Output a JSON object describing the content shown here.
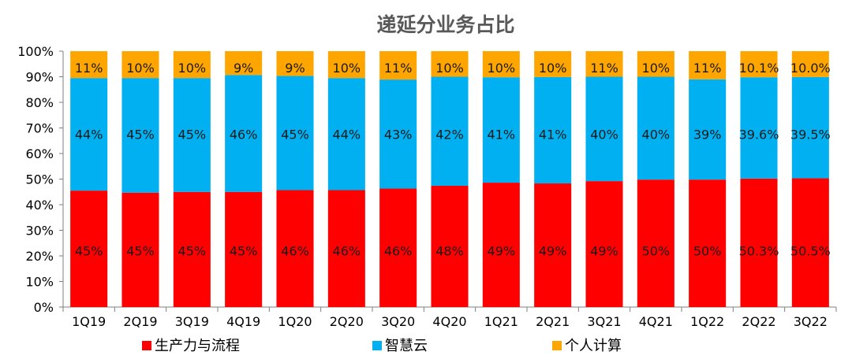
{
  "chart_data": {
    "type": "bar",
    "stacked": true,
    "percent_stacked": true,
    "title": "递延分业务占比",
    "categories": [
      "1Q19",
      "2Q19",
      "3Q19",
      "4Q19",
      "1Q20",
      "2Q20",
      "3Q20",
      "4Q20",
      "1Q21",
      "2Q21",
      "3Q21",
      "4Q21",
      "1Q22",
      "2Q22",
      "3Q22"
    ],
    "series": [
      {
        "name": "生产力与流程",
        "color": "#FF0000",
        "values": [
          45,
          45,
          45,
          45,
          46,
          46,
          46,
          48,
          49,
          49,
          49,
          50,
          50,
          50.3,
          50.5
        ],
        "labels": [
          "45%",
          "45%",
          "45%",
          "45%",
          "46%",
          "46%",
          "46%",
          "48%",
          "49%",
          "49%",
          "49%",
          "50%",
          "50%",
          "50.3%",
          "50.5%"
        ],
        "bar_top": [
          45.5,
          44.7,
          45.0,
          45.0,
          45.7,
          45.7,
          46.3,
          47.4,
          48.6,
          48.3,
          49.2,
          49.8,
          49.8,
          50.2,
          50.3
        ]
      },
      {
        "name": "智慧云",
        "color": "#00B0F0",
        "values": [
          44,
          45,
          45,
          46,
          45,
          44,
          43,
          42,
          41,
          41,
          40,
          40,
          39,
          39.6,
          39.5
        ],
        "labels": [
          "44%",
          "45%",
          "45%",
          "46%",
          "45%",
          "44%",
          "43%",
          "42%",
          "41%",
          "41%",
          "40%",
          "40%",
          "39%",
          "39.6%",
          "39.5%"
        ],
        "bar_top": [
          89.5,
          89.5,
          89.5,
          90.7,
          90.3,
          89.5,
          88.9,
          90.0,
          89.8,
          89.9,
          90.0,
          90.0,
          89.0,
          89.8,
          89.9
        ]
      },
      {
        "name": "个人计算",
        "color": "#FFA500",
        "values": [
          11,
          10,
          10,
          9,
          9,
          10,
          11,
          10,
          10,
          10,
          11,
          10,
          11,
          10.1,
          10.0
        ],
        "labels": [
          "11%",
          "10%",
          "10%",
          "9%",
          "9%",
          "10%",
          "11%",
          "10%",
          "10%",
          "10%",
          "11%",
          "10%",
          "11%",
          "10.1%",
          "10.0%"
        ],
        "bar_top": [
          100,
          100,
          100,
          100,
          100,
          100,
          100,
          100,
          100,
          100,
          100,
          100,
          100,
          100,
          100
        ]
      }
    ],
    "y_ticks": [
      "0%",
      "10%",
      "20%",
      "30%",
      "40%",
      "50%",
      "60%",
      "70%",
      "80%",
      "90%",
      "100%"
    ],
    "ylim": [
      0,
      100
    ],
    "legend_position": "bottom",
    "grid": false
  }
}
